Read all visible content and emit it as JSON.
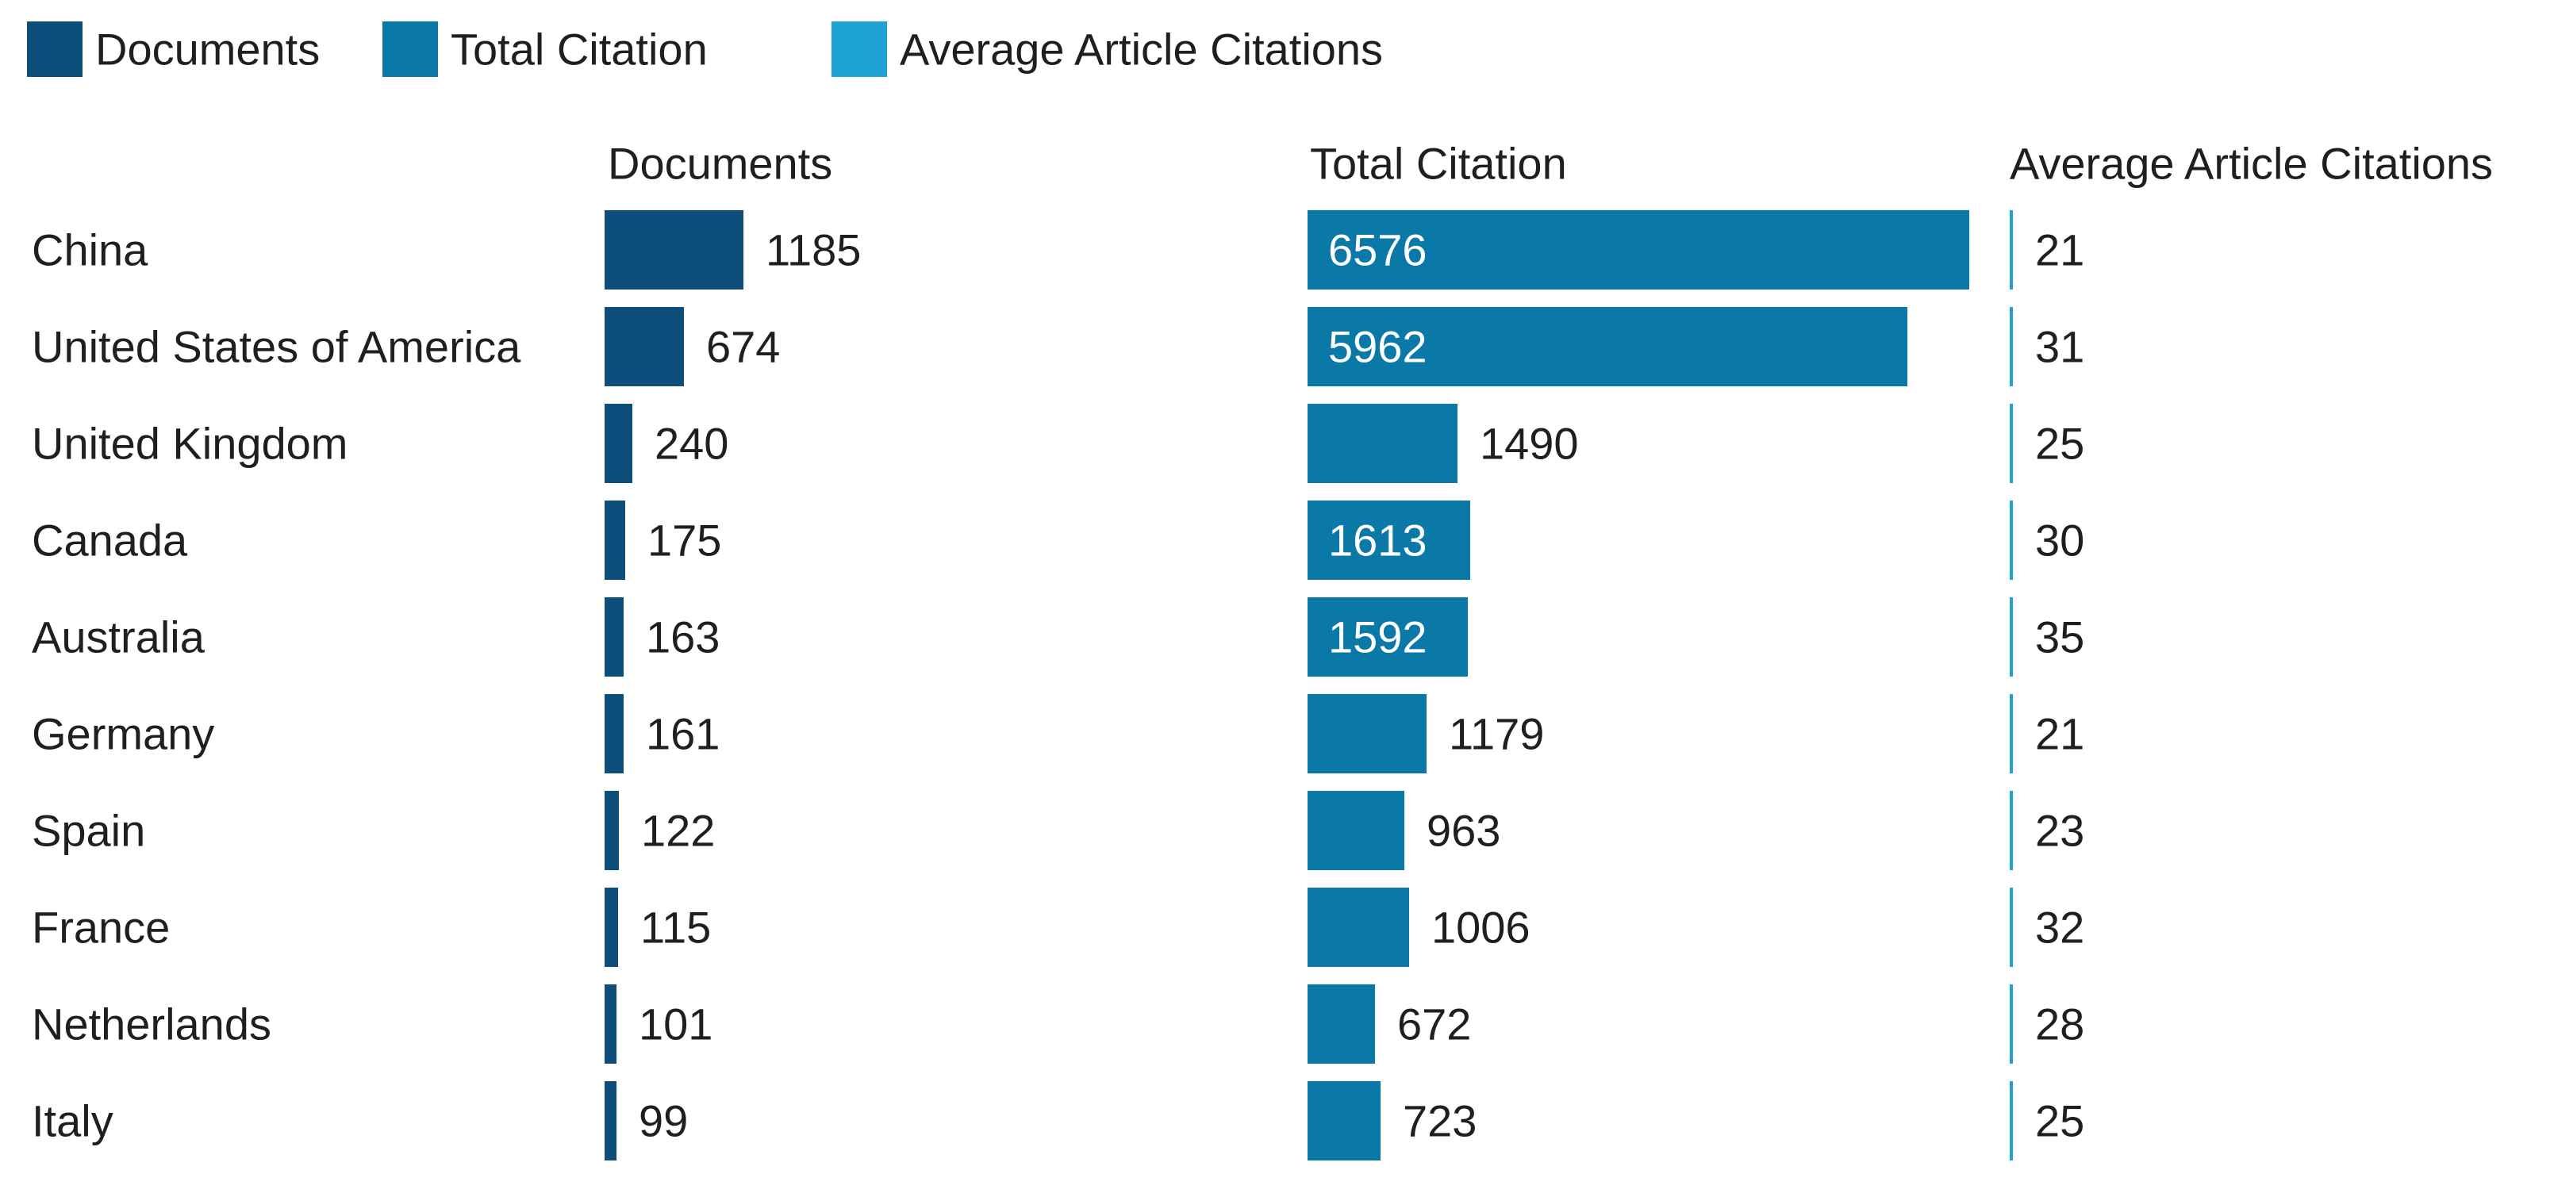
{
  "chart_data": {
    "type": "bar",
    "orientation": "horizontal",
    "layout": "small-multiples",
    "legend_position": "top-left",
    "categories": [
      "China",
      "United States of America",
      "United Kingdom",
      "Canada",
      "Australia",
      "Germany",
      "Spain",
      "France",
      "Netherlands",
      "Italy"
    ],
    "legend": [
      {
        "label": "Documents",
        "color": "#0d4f7a"
      },
      {
        "label": "Total Citation",
        "color": "#0b79a8"
      },
      {
        "label": "Average Article Citations",
        "color": "#1fa3d4"
      }
    ],
    "series": [
      {
        "name": "Documents",
        "header": "Documents",
        "color": "#0d4f7a",
        "values": [
          1185,
          674,
          240,
          175,
          163,
          161,
          122,
          115,
          101,
          99
        ]
      },
      {
        "name": "Total Citation",
        "header": "Total Citation",
        "color": "#0b79a8",
        "values": [
          6576,
          5962,
          1490,
          1613,
          1592,
          1179,
          963,
          1006,
          672,
          723
        ]
      },
      {
        "name": "Average Article Citations",
        "header": "Average Article Citations",
        "color": "#1fa3d4",
        "values": [
          21,
          31,
          25,
          30,
          35,
          21,
          23,
          32,
          28,
          25
        ]
      }
    ]
  }
}
